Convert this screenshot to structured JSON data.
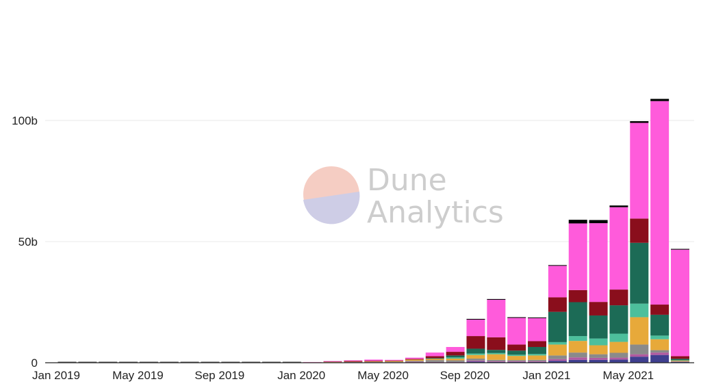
{
  "chart_data": {
    "type": "bar",
    "stacked": true,
    "categories": [
      "Jan 2019",
      "Feb 2019",
      "Mar 2019",
      "Apr 2019",
      "May 2019",
      "Jun 2019",
      "Jul 2019",
      "Aug 2019",
      "Sep 2019",
      "Oct 2019",
      "Nov 2019",
      "Dec 2019",
      "Jan 2020",
      "Feb 2020",
      "Mar 2020",
      "Apr 2020",
      "May 2020",
      "Jun 2020",
      "Jul 2020",
      "Aug 2020",
      "Sep 2020",
      "Oct 2020",
      "Nov 2020",
      "Dec 2020",
      "Jan 2021",
      "Feb 2021",
      "Mar 2021",
      "Apr 2021",
      "May 2021",
      "Jun 2021",
      "Jul 2021"
    ],
    "x_tick_labels": [
      "Jan 2019",
      "May 2019",
      "Sep 2019",
      "Jan 2020",
      "May 2020",
      "Sep 2020",
      "Jan 2021",
      "May 2021"
    ],
    "y_ticks": [
      {
        "value": 0,
        "label": "0"
      },
      {
        "value": 50,
        "label": "50b"
      },
      {
        "value": 100,
        "label": "100b"
      }
    ],
    "ylim": [
      0,
      145
    ],
    "grid": true,
    "series": [
      {
        "color": "#3f3f8f",
        "values": [
          0,
          0,
          0,
          0,
          0,
          0,
          0,
          0,
          0,
          0,
          0,
          0,
          0,
          0,
          0,
          0,
          0,
          0,
          0,
          0,
          0.5,
          0.3,
          0.3,
          0.3,
          0.8,
          1.2,
          1.2,
          1.3,
          2.5,
          3.2,
          0.3
        ]
      },
      {
        "color": "#b05aa0",
        "values": [
          0,
          0,
          0,
          0,
          0,
          0,
          0,
          0,
          0,
          0,
          0,
          0,
          0,
          0,
          0,
          0,
          0.2,
          0.4,
          0.3,
          0.3,
          0.4,
          0.3,
          0.3,
          0.3,
          0.7,
          1.0,
          0.8,
          0.8,
          1.0,
          1.0,
          0.1
        ]
      },
      {
        "color": "#8a8a8a",
        "values": [
          0,
          0,
          0,
          0,
          0,
          0,
          0,
          0,
          0,
          0,
          0,
          0,
          0.1,
          0.2,
          0.3,
          0.3,
          0.2,
          0.4,
          0.8,
          0.7,
          0.8,
          0.6,
          0.5,
          0.6,
          1.5,
          2.0,
          1.5,
          2.0,
          4.0,
          1.0,
          0.2
        ]
      },
      {
        "color": "#e7a93a",
        "values": [
          0,
          0,
          0,
          0,
          0,
          0,
          0,
          0,
          0,
          0,
          0,
          0,
          0.1,
          0.1,
          0.1,
          0.2,
          0.3,
          0.5,
          0.5,
          0.7,
          1.5,
          2.3,
          1.7,
          1.8,
          4.5,
          4.8,
          3.7,
          4.5,
          11.3,
          4.5,
          0.3
        ]
      },
      {
        "color": "#4dbf9c",
        "values": [
          0,
          0,
          0,
          0,
          0,
          0,
          0,
          0,
          0,
          0,
          0,
          0,
          0,
          0,
          0,
          0,
          0,
          0,
          0,
          0.5,
          0.6,
          0.5,
          0.5,
          0.6,
          1.0,
          2.0,
          2.8,
          3.4,
          5.6,
          1.5,
          0.1
        ]
      },
      {
        "color": "#1c6b56",
        "values": [
          0,
          0,
          0,
          0,
          0,
          0,
          0,
          0,
          0,
          0,
          0,
          0,
          0,
          0,
          0,
          0,
          0,
          0,
          0.3,
          0.8,
          2.0,
          1.3,
          1.7,
          2.9,
          12.5,
          14.0,
          9.5,
          11.7,
          25.1,
          8.6,
          0.6
        ]
      },
      {
        "color": "#8a0e1c",
        "values": [
          0,
          0,
          0,
          0,
          0,
          0,
          0,
          0,
          0,
          0,
          0,
          0,
          0,
          0.2,
          0.3,
          0.3,
          0.2,
          0.3,
          0.8,
          1.5,
          5.2,
          5.2,
          2.5,
          2.4,
          6.0,
          5.0,
          5.6,
          6.5,
          10.0,
          4.2,
          1.1
        ]
      },
      {
        "color": "#ff5bdb",
        "values": [
          0,
          0,
          0,
          0,
          0,
          0,
          0,
          0,
          0,
          0,
          0,
          0,
          0.1,
          0.2,
          0.3,
          0.5,
          0.3,
          0.5,
          1.5,
          2.0,
          6.8,
          15.5,
          11.0,
          9.5,
          13.0,
          27.5,
          32.5,
          34.0,
          39.5,
          84.0,
          44.0
        ]
      },
      {
        "color": "#000000",
        "values": [
          0,
          0,
          0,
          0,
          0,
          0,
          0,
          0,
          0,
          0,
          0,
          0,
          0,
          0,
          0,
          0,
          0,
          0,
          0,
          0,
          0.3,
          0.3,
          0.3,
          0.3,
          0.3,
          1.5,
          1.3,
          0.7,
          0.7,
          0.9,
          0.3
        ]
      }
    ]
  },
  "watermark": {
    "line1": "Dune",
    "line2": "Analytics",
    "color": "#c8c8c8",
    "logo_colors": [
      "#f4c8bd",
      "#c9c8e4"
    ]
  }
}
